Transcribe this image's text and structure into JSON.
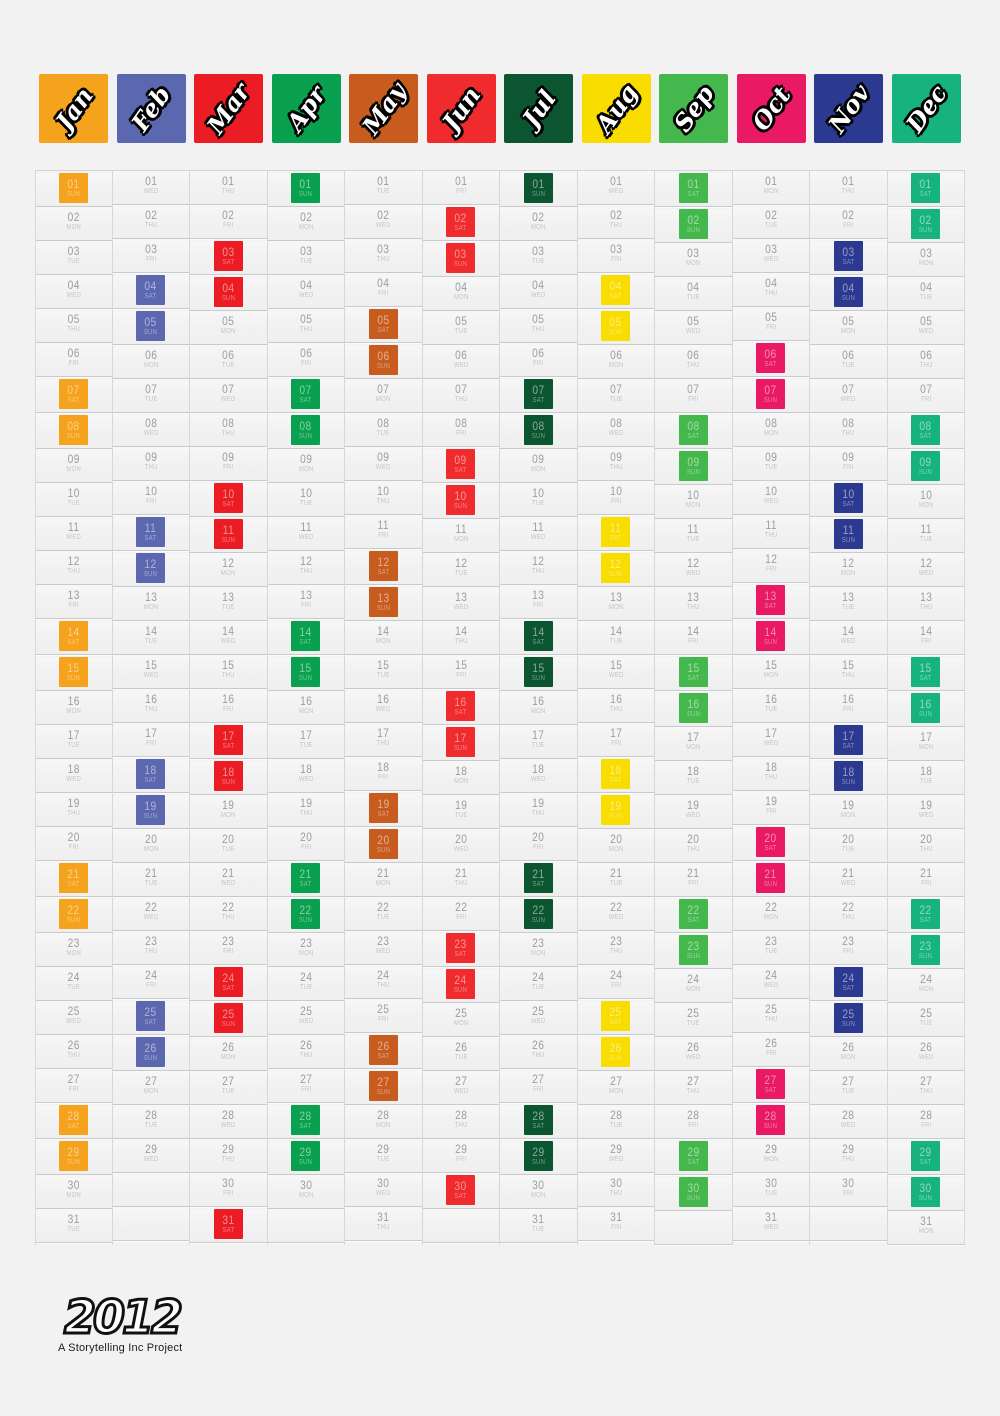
{
  "poster": {
    "year": "2012",
    "credit": "A Storytelling Inc Project"
  },
  "weekdays": [
    "SUN",
    "MON",
    "TUE",
    "WED",
    "THU",
    "FRI",
    "SAT"
  ],
  "weekend_days": [
    "SAT",
    "SUN"
  ],
  "grid": {
    "rows": 31,
    "highlight_number_tint": "rgba(255,255,255,0.5)",
    "highlight_weekday_tint": "rgba(255,255,255,0.42)"
  },
  "months": [
    {
      "label": "Jan",
      "color": "#F5A21C",
      "days": 31,
      "first_weekday": 0
    },
    {
      "label": "Feb",
      "color": "#5B68B0",
      "days": 29,
      "first_weekday": 3
    },
    {
      "label": "Mar",
      "color": "#EC1C24",
      "days": 31,
      "first_weekday": 4
    },
    {
      "label": "Apr",
      "color": "#09A04F",
      "days": 30,
      "first_weekday": 0
    },
    {
      "label": "May",
      "color": "#C75C1E",
      "days": 31,
      "first_weekday": 2
    },
    {
      "label": "Jun",
      "color": "#EF2B2D",
      "days": 30,
      "first_weekday": 5
    },
    {
      "label": "Jul",
      "color": "#0B5530",
      "days": 31,
      "first_weekday": 0
    },
    {
      "label": "Aug",
      "color": "#F9DC00",
      "days": 31,
      "first_weekday": 3
    },
    {
      "label": "Sep",
      "color": "#44B74D",
      "days": 30,
      "first_weekday": 6
    },
    {
      "label": "Oct",
      "color": "#E91A63",
      "days": 31,
      "first_weekday": 1
    },
    {
      "label": "Nov",
      "color": "#2B3990",
      "days": 30,
      "first_weekday": 4
    },
    {
      "label": "Dec",
      "color": "#17B37E",
      "days": 31,
      "first_weekday": 6
    }
  ]
}
